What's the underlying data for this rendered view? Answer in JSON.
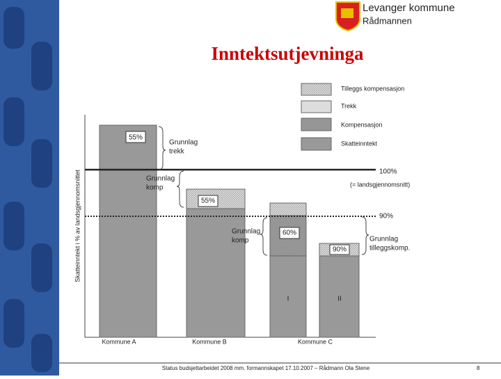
{
  "header": {
    "organization": "Levanger kommune",
    "department": "Rådmannen"
  },
  "title": "Inntektsutjevninga",
  "diagram": {
    "y_axis_label": "Skatteinntekt i % av landsgjennomsnittet",
    "legend": [
      "Tilleggs kompensasjon",
      "Trekk",
      "Kompensasjon",
      "Skatteinntekt"
    ],
    "reference_lines": [
      {
        "label": "100%",
        "note": "(= landsgjennomsnitt)"
      },
      {
        "label": "90%"
      }
    ],
    "bar_labels": [
      "55%",
      "55%",
      "60%",
      "90%"
    ],
    "annotations": [
      [
        "Grunnlag",
        "trekk"
      ],
      [
        "Grunnlag",
        "komp"
      ],
      [
        "Grunnlag",
        "komp"
      ],
      [
        "Grunnlag",
        "tilleggskomp."
      ]
    ],
    "sub_labels": [
      "I",
      "II"
    ],
    "categories": [
      "Kommune A",
      "Kommune B",
      "Kommune C"
    ]
  },
  "footer": {
    "text": "Status budsjettarbeidet 2008 mm. formannskapet 17.10.2007 – Rådmann Ola Stene",
    "page": "8"
  }
}
